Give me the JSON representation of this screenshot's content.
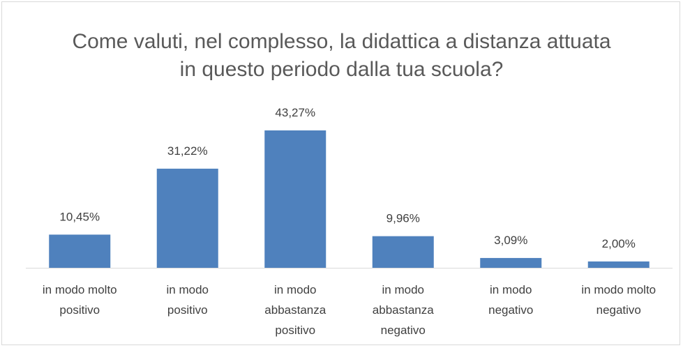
{
  "chart_data": {
    "type": "bar",
    "title": "Come valuti, nel complesso, la didattica a distanza attuata in questo periodo dalla tua scuola?",
    "categories": [
      "in modo molto positivo",
      "in modo positivo",
      "in modo abbastanza positivo",
      "in modo abbastanza negativo",
      "in modo negativo",
      "in modo molto negativo"
    ],
    "values": [
      10.45,
      31.22,
      43.27,
      9.96,
      3.09,
      2.0
    ],
    "value_labels": [
      "10,45%",
      "31,22%",
      "43,27%",
      "9,96%",
      "3,09%",
      "2,00%"
    ],
    "color": "#4f81bd"
  }
}
